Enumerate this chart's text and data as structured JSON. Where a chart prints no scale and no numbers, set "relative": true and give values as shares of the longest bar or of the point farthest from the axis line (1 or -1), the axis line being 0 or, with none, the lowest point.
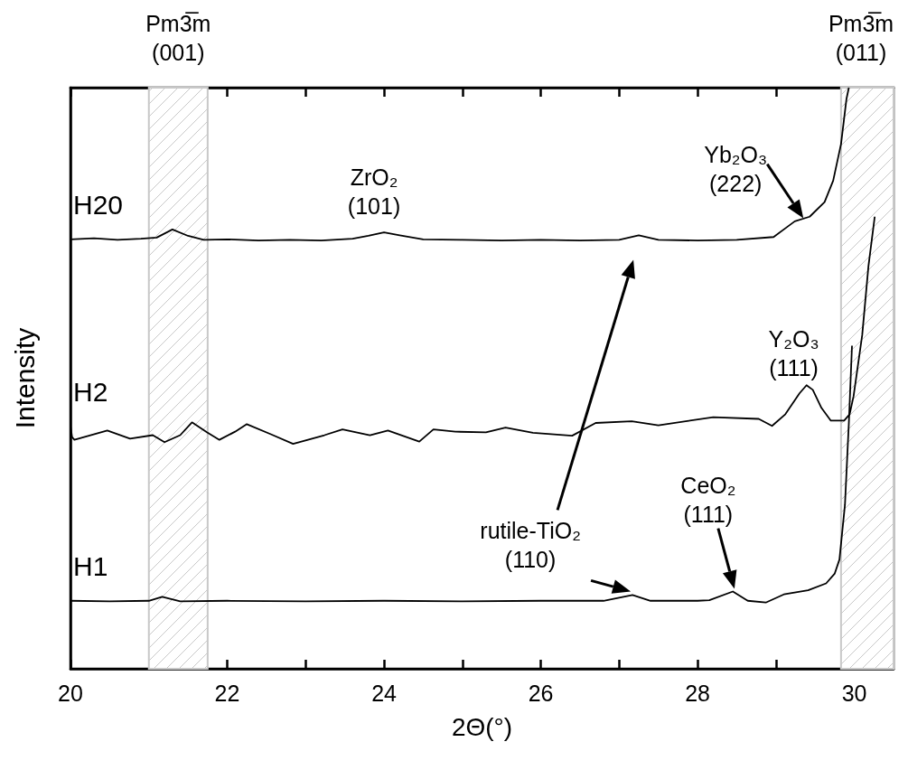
{
  "chart_data": {
    "type": "line",
    "xlabel": "2Θ(°)",
    "ylabel": "Intensity",
    "relative": true,
    "xlim": [
      20,
      30.5
    ],
    "xticks": [
      20,
      {
        "value": 21,
        "label": null
      },
      22,
      {
        "value": 23,
        "label": null
      },
      24,
      {
        "value": 25,
        "label": null
      },
      26,
      {
        "value": 27,
        "label": null
      },
      28,
      {
        "value": 29,
        "label": null
      },
      30
    ],
    "grid": false,
    "legend": false,
    "marker": "none",
    "line_style": "solid",
    "series": [
      {
        "name": "H20",
        "color": "#000000",
        "x": [
          20,
          20.3,
          20.6,
          20.9,
          21.1,
          21.3,
          21.5,
          21.7,
          22.0,
          22.4,
          22.8,
          23.2,
          23.6,
          23.8,
          24.0,
          24.2,
          24.5,
          25.0,
          25.5,
          26.0,
          26.5,
          27.0,
          27.25,
          27.5,
          28.0,
          28.5,
          28.97,
          29.1,
          29.24,
          29.43,
          29.62,
          29.73,
          29.83,
          29.9,
          29.93
        ],
        "values": [
          0.739,
          0.741,
          0.738,
          0.74,
          0.742,
          0.756,
          0.745,
          0.738,
          0.739,
          0.737,
          0.738,
          0.737,
          0.74,
          0.745,
          0.751,
          0.746,
          0.739,
          0.738,
          0.737,
          0.738,
          0.737,
          0.738,
          0.746,
          0.738,
          0.737,
          0.738,
          0.743,
          0.756,
          0.77,
          0.778,
          0.803,
          0.84,
          0.903,
          0.981,
          1
        ]
      },
      {
        "name": "H2",
        "color": "#000000",
        "x": [
          20.0,
          20.02,
          20.05,
          20.47,
          20.76,
          21.05,
          21.2,
          21.4,
          21.55,
          21.74,
          21.9,
          22.1,
          22.25,
          22.55,
          22.84,
          23.24,
          23.47,
          23.82,
          24.05,
          24.45,
          24.63,
          24.91,
          25.3,
          25.55,
          25.9,
          26.4,
          26.7,
          27.16,
          27.5,
          28.2,
          28.78,
          28.95,
          29.12,
          29.3,
          29.39,
          29.47,
          29.58,
          29.7,
          29.87,
          29.94,
          29.99,
          30.1,
          30.18,
          30.26
        ],
        "values": [
          0.418,
          0.399,
          0.394,
          0.41,
          0.396,
          0.402,
          0.39,
          0.402,
          0.424,
          0.407,
          0.394,
          0.408,
          0.421,
          0.404,
          0.387,
          0.402,
          0.412,
          0.402,
          0.41,
          0.391,
          0.412,
          0.408,
          0.407,
          0.415,
          0.406,
          0.401,
          0.423,
          0.426,
          0.419,
          0.433,
          0.43,
          0.418,
          0.438,
          0.474,
          0.488,
          0.48,
          0.449,
          0.427,
          0.427,
          0.438,
          0.469,
          0.574,
          0.693,
          0.778
        ]
      },
      {
        "name": "H1",
        "color": "#000000",
        "x": [
          20,
          20.5,
          21.0,
          21.17,
          21.4,
          22,
          23,
          24,
          25,
          26,
          26.8,
          27.17,
          27.4,
          28.0,
          28.15,
          28.45,
          28.64,
          28.87,
          29.1,
          29.41,
          29.64,
          29.75,
          29.81,
          29.88,
          29.93,
          29.97
        ],
        "values": [
          0.117,
          0.116,
          0.117,
          0.124,
          0.116,
          0.117,
          0.116,
          0.117,
          0.116,
          0.117,
          0.117,
          0.127,
          0.117,
          0.117,
          0.118,
          0.133,
          0.117,
          0.114,
          0.128,
          0.135,
          0.147,
          0.164,
          0.188,
          0.282,
          0.423,
          0.556
        ]
      }
    ],
    "bands": [
      {
        "axis": "x",
        "from": 21,
        "to": 21.75,
        "label": "Pm3̅m\n(001)",
        "color": "#c8c8c8"
      },
      {
        "axis": "x",
        "from": 29.83,
        "to": 30.5,
        "label": "Pm3̅m\n(011)",
        "color": "#c8c8c8"
      }
    ],
    "annotations": [
      {
        "text": "ZrO₂\n(101)",
        "x": 24,
        "y": 0.751
      },
      {
        "text": "Yb₂O₃\n(222)",
        "x": 29.35,
        "y": 0.772
      },
      {
        "text": "Y₂O₃\n(111)",
        "x": 29.4,
        "y": 0.488
      },
      {
        "text": "CeO₂\n(111)",
        "x": 28.47,
        "y": 0.136
      },
      {
        "text": "rutile-TiO₂\n(110)",
        "x": 27.17,
        "y": 0.13
      }
    ]
  }
}
